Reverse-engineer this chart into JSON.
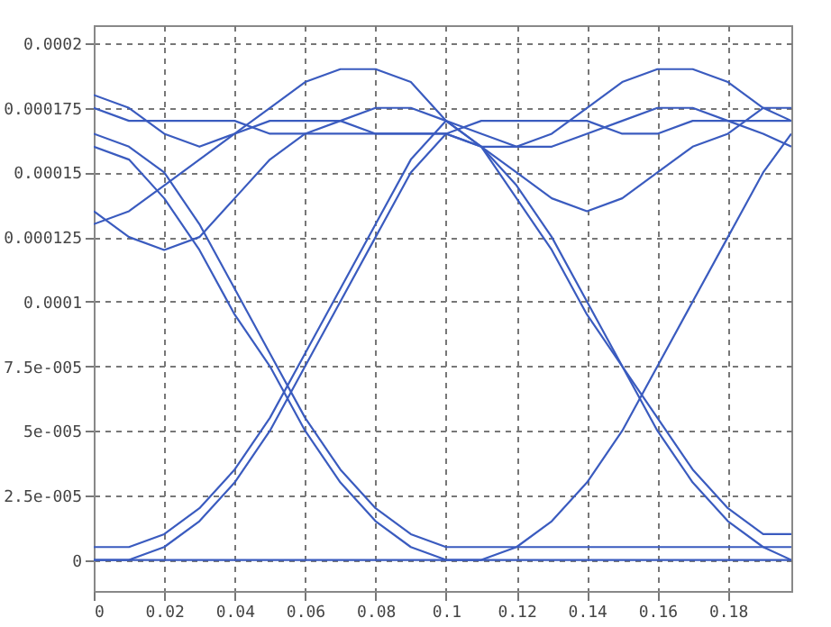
{
  "chart_data": {
    "type": "line",
    "x": [
      0,
      0.01,
      0.02,
      0.03,
      0.04,
      0.05,
      0.06,
      0.07,
      0.08,
      0.09,
      0.1,
      0.11,
      0.12,
      0.13,
      0.14,
      0.15,
      0.16,
      0.17,
      0.18,
      0.19,
      0.198
    ],
    "series": [
      {
        "color": "#3a5bbf",
        "values": [
          0,
          0,
          0,
          0,
          0,
          0,
          0,
          0,
          0,
          0,
          0,
          0,
          0,
          0,
          0,
          0,
          0,
          0,
          0,
          0,
          0
        ]
      },
      {
        "color": "#3a5bbf",
        "values": [
          0,
          0,
          5e-06,
          1.5e-05,
          3e-05,
          5e-05,
          7.5e-05,
          0.0001,
          0.000125,
          0.00015,
          0.000165,
          0.00017,
          0.00017,
          0.00017,
          0.00017,
          0.000165,
          0.000165,
          0.00017,
          0.00017,
          0.00017,
          0.00017
        ]
      },
      {
        "color": "#3a5bbf",
        "values": [
          5e-06,
          5e-06,
          1e-05,
          2e-05,
          3.5e-05,
          5.5e-05,
          8e-05,
          0.000105,
          0.00013,
          0.000155,
          0.00017,
          0.00016,
          0.00014,
          0.00012,
          9.5e-05,
          7.5e-05,
          5e-05,
          3e-05,
          1.5e-05,
          5e-06,
          0
        ]
      },
      {
        "color": "#3a5bbf",
        "values": [
          0.00016,
          0.000155,
          0.00014,
          0.00012,
          9.5e-05,
          7.5e-05,
          5e-05,
          3e-05,
          1.5e-05,
          5e-06,
          0,
          0,
          5e-06,
          1.5e-05,
          3e-05,
          5e-05,
          7.5e-05,
          0.0001,
          0.000125,
          0.00015,
          0.000165
        ]
      },
      {
        "color": "#3a5bbf",
        "values": [
          0.000165,
          0.00016,
          0.00015,
          0.00013,
          0.000105,
          8e-05,
          5.5e-05,
          3.5e-05,
          2e-05,
          1e-05,
          5e-06,
          5e-06,
          5e-06,
          5e-06,
          5e-06,
          5e-06,
          5e-06,
          5e-06,
          5e-06,
          5e-06,
          5e-06
        ]
      },
      {
        "color": "#3a5bbf",
        "values": [
          0.000175,
          0.00017,
          0.00017,
          0.00017,
          0.00017,
          0.000165,
          0.000165,
          0.000165,
          0.000165,
          0.000165,
          0.000165,
          0.00016,
          0.000145,
          0.000125,
          0.0001,
          7.5e-05,
          5.5e-05,
          3.5e-05,
          2e-05,
          1e-05,
          1e-05
        ]
      },
      {
        "color": "#3a5bbf",
        "values": [
          0.00018,
          0.000175,
          0.000165,
          0.00016,
          0.000165,
          0.000175,
          0.000185,
          0.00019,
          0.00019,
          0.000185,
          0.00017,
          0.00016,
          0.00016,
          0.000165,
          0.000175,
          0.000185,
          0.00019,
          0.00019,
          0.000185,
          0.000175,
          0.00017
        ]
      },
      {
        "color": "#3a5bbf",
        "values": [
          0.00013,
          0.000135,
          0.000145,
          0.000155,
          0.000165,
          0.00017,
          0.00017,
          0.00017,
          0.000165,
          0.000165,
          0.000165,
          0.00016,
          0.00015,
          0.00014,
          0.000135,
          0.00014,
          0.00015,
          0.00016,
          0.000165,
          0.000175,
          0.000175
        ]
      },
      {
        "color": "#3a5bbf",
        "values": [
          0.000135,
          0.000125,
          0.00012,
          0.000125,
          0.00014,
          0.000155,
          0.000165,
          0.00017,
          0.000175,
          0.000175,
          0.00017,
          0.000165,
          0.00016,
          0.00016,
          0.000165,
          0.00017,
          0.000175,
          0.000175,
          0.00017,
          0.000165,
          0.00016
        ]
      }
    ],
    "xlim": [
      0,
      0.198
    ],
    "ylim": [
      -1.2e-05,
      0.000207
    ],
    "xticks": [
      0,
      0.02,
      0.04,
      0.06,
      0.08,
      0.1,
      0.12,
      0.14,
      0.16,
      0.18
    ],
    "yticks": [
      0,
      {
        "value": 2.5e-05,
        "label": "2.5e-005"
      },
      {
        "value": 5e-05,
        "label": "5e-005"
      },
      {
        "value": 7.5e-05,
        "label": "7.5e-005"
      },
      0.0001,
      0.000125,
      0.00015,
      0.000175,
      0.0002
    ],
    "grid": true
  }
}
